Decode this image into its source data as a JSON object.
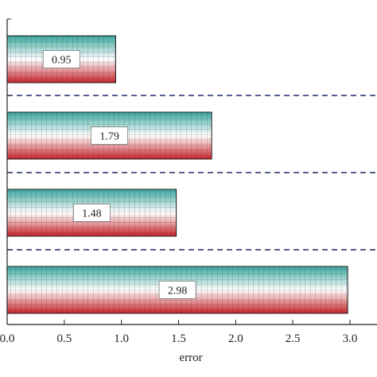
{
  "chart_data": {
    "type": "bar",
    "orientation": "horizontal",
    "values": [
      0.95,
      1.79,
      1.48,
      2.98
    ],
    "data_labels": [
      "0.95",
      "1.79",
      "1.48",
      "2.98"
    ],
    "xlabel": "error",
    "xlim": [
      0,
      3.2
    ],
    "x_ticks": [
      0.0,
      0.5,
      1.0,
      1.5,
      2.0,
      2.5,
      3.0
    ],
    "x_tick_labels": [
      "0.0",
      "0.5",
      "1.0",
      "1.5",
      "2.0",
      "2.5",
      "3.0"
    ],
    "separators": "dashed",
    "bar_gradient": {
      "top": "#3aa8a0",
      "middle": "#ffffff",
      "bottom": "#c8222a"
    },
    "grid_line_color": "#1f2a6e",
    "bar_pattern": "grid"
  }
}
